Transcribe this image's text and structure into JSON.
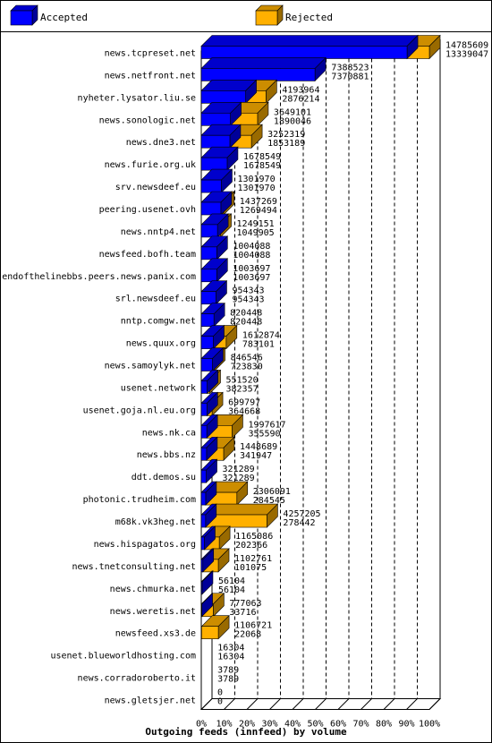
{
  "chart_data": {
    "type": "bar",
    "title": "Outgoing feeds (innfeed) by volume",
    "xlim": [
      0,
      100
    ],
    "x_ticks": [
      "0%",
      "10%",
      "20%",
      "30%",
      "40%",
      "50%",
      "60%",
      "70%",
      "80%",
      "90%",
      "100%"
    ],
    "legend_position": "top",
    "grid": true,
    "series": [
      {
        "name": "Accepted",
        "color": "#0000ff"
      },
      {
        "name": "Rejected",
        "color": "#ffb000"
      }
    ],
    "categories": [
      "news.tcpreset.net",
      "news.netfront.net",
      "nyheter.lysator.liu.se",
      "news.sonologic.net",
      "news.dne3.net",
      "news.furie.org.uk",
      "srv.newsdeef.eu",
      "peering.usenet.ovh",
      "news.nntp4.net",
      "newsfeed.bofh.team",
      "endofthelinebbs.peers.news.panix.com",
      "srl.newsdeef.eu",
      "nntp.comgw.net",
      "news.quux.org",
      "news.samoylyk.net",
      "usenet.network",
      "usenet.goja.nl.eu.org",
      "news.nk.ca",
      "news.bbs.nz",
      "ddt.demos.su",
      "photonic.trudheim.com",
      "m68k.vk3heg.net",
      "news.hispagatos.org",
      "news.tnetconsulting.net",
      "news.chmurka.net",
      "news.weretis.net",
      "newsfeed.xs3.de",
      "usenet.blueworldhosting.com",
      "news.corradoroberto.it",
      "news.gletsjer.net"
    ],
    "offered": [
      14785609,
      7388523,
      4193964,
      3649101,
      3252319,
      1678549,
      1301970,
      1437269,
      1249151,
      1004088,
      1003697,
      954343,
      820448,
      1612874,
      846546,
      551520,
      699797,
      1997617,
      1448689,
      321289,
      2306091,
      4257205,
      1165086,
      1102761,
      56104,
      777063,
      1106721,
      16304,
      3789,
      0
    ],
    "accepted": [
      13339047,
      7370881,
      2876214,
      1890046,
      1853189,
      1678549,
      1301970,
      1269494,
      1049905,
      1004088,
      1003697,
      954343,
      820448,
      783101,
      723830,
      382357,
      364668,
      355590,
      341947,
      321289,
      284545,
      278442,
      202366,
      101075,
      56104,
      33716,
      22068,
      16304,
      3789,
      0
    ]
  }
}
